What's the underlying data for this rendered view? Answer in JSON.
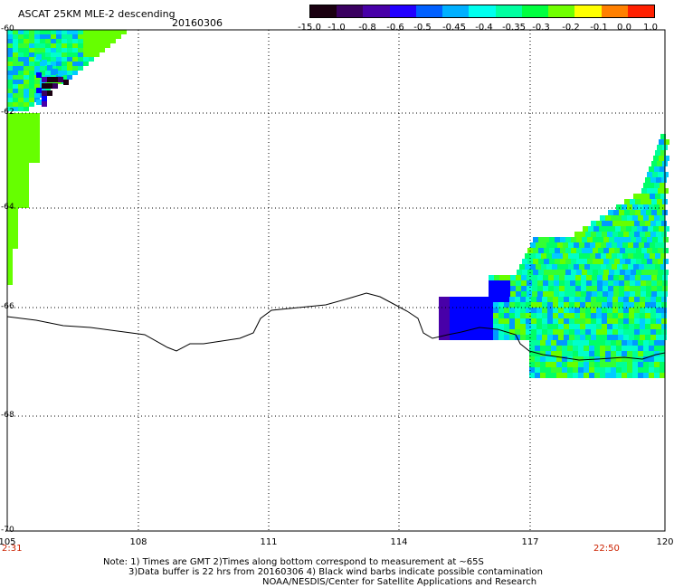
{
  "header": {
    "title": "ASCAT 25KM MLE-2 descending",
    "date": "20160306"
  },
  "colorbar": {
    "labels": [
      "-15.0",
      "-1.0",
      "-0.8",
      "-0.6",
      "-0.5",
      "-0.45",
      "-0.4",
      "-0.35",
      "-0.3",
      "-0.2",
      "-0.1",
      "0.0",
      "1.0"
    ],
    "colors": [
      "#1a0010",
      "#3a0060",
      "#4800a8",
      "#2200ff",
      "#0060ff",
      "#00b0ff",
      "#00ffee",
      "#00ffa0",
      "#00ff40",
      "#70ff00",
      "#ffff00",
      "#ff8000",
      "#ff2000"
    ]
  },
  "axes": {
    "lat_labels": [
      "-60",
      "-62",
      "-64",
      "-66",
      "-68",
      "-70"
    ],
    "lon_labels": [
      "105",
      "108",
      "111",
      "114",
      "117",
      "120"
    ],
    "time_start": "2:31",
    "time_end": "22:50"
  },
  "notes": {
    "line1": "Note: 1) Times are GMT 2)Times along bottom correspond to measurement at ~65S",
    "line2": "3)Data buffer is 22 hrs from 20160306 4) Black wind barbs indicate possible contamination",
    "line3": "NOAA/NESDIS/Center for Satellite Applications and Research"
  }
}
